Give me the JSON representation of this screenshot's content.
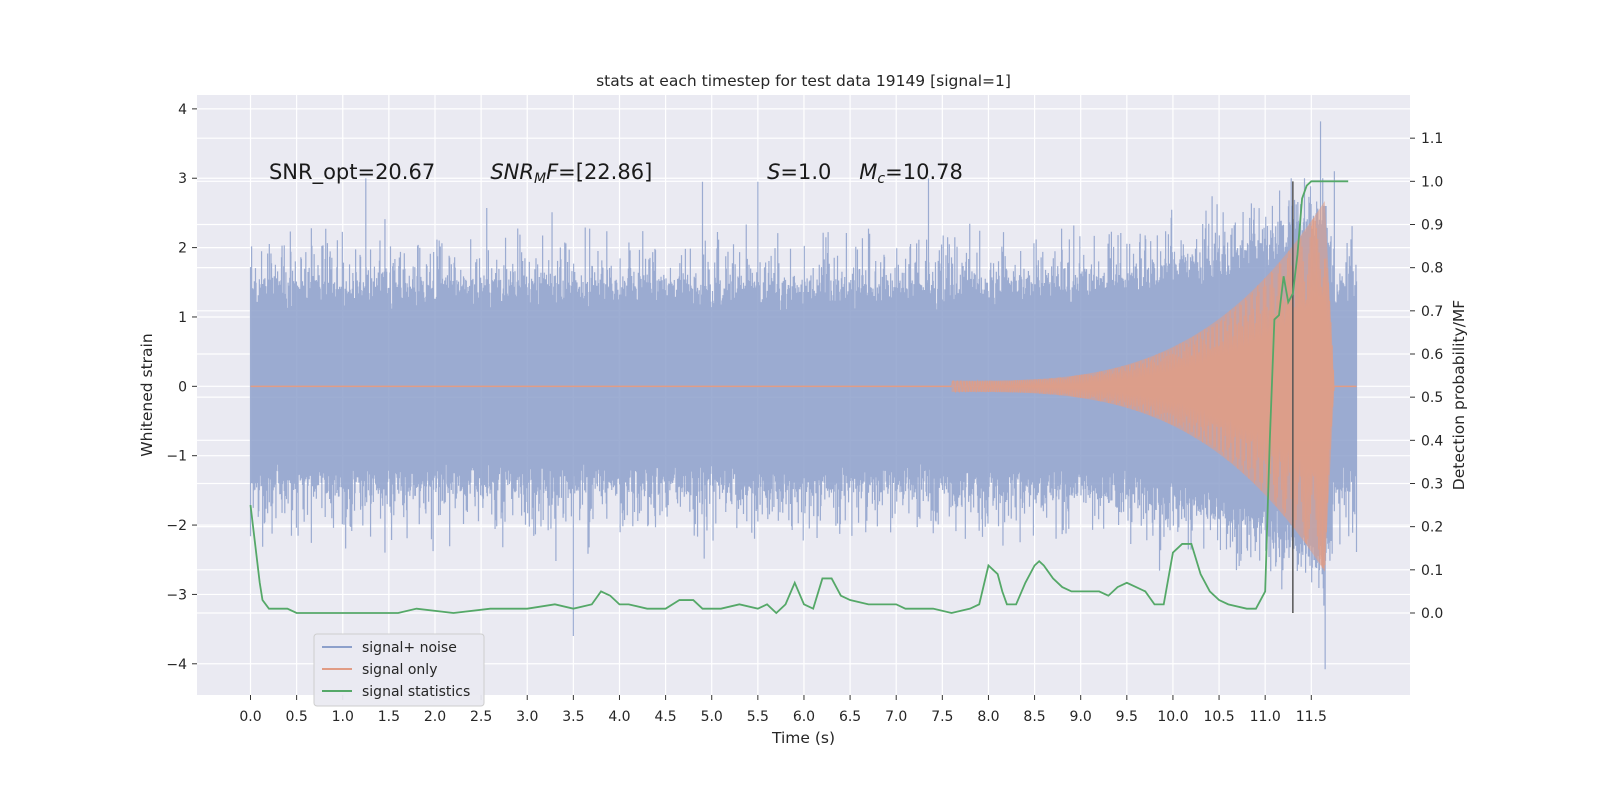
{
  "chart_data": {
    "type": "line",
    "title": "stats at each timestep for test data 19149 [signal=1]",
    "xlabel": "Time (s)",
    "ylabel": "Whitened strain",
    "y2label": "Detection probability/MF",
    "xlim": [
      -0.58,
      12.57
    ],
    "ylim": [
      -4.45,
      4.2
    ],
    "y2lim": [
      -0.19,
      1.2
    ],
    "xticks": [
      0.0,
      0.5,
      1.0,
      1.5,
      2.0,
      2.5,
      3.0,
      3.5,
      4.0,
      4.5,
      5.0,
      5.5,
      6.0,
      6.5,
      7.0,
      7.5,
      8.0,
      8.5,
      9.0,
      9.5,
      10.0,
      10.5,
      11.0,
      11.5
    ],
    "xtick_labels": [
      "0.0",
      "0.5",
      "1.0",
      "1.5",
      "2.0",
      "2.5",
      "3.0",
      "3.5",
      "4.0",
      "4.5",
      "5.0",
      "5.5",
      "6.0",
      "6.5",
      "7.0",
      "7.5",
      "8.0",
      "8.5",
      "9.0",
      "9.5",
      "10.0",
      "10.5",
      "11.0",
      "11.5"
    ],
    "yticks": [
      4,
      3,
      2,
      1,
      0,
      -1,
      -2,
      -3,
      -4
    ],
    "ytick_labels": [
      "4",
      "3",
      "2",
      "1",
      "0",
      "−1",
      "−2",
      "−3",
      "−4"
    ],
    "y2ticks": [
      1.1,
      1.0,
      0.9,
      0.8,
      0.7,
      0.6,
      0.5,
      0.4,
      0.3,
      0.2,
      0.1,
      0.0
    ],
    "y2tick_labels": [
      "1.1",
      "1.0",
      "0.9",
      "0.8",
      "0.7",
      "0.6",
      "0.5",
      "0.4",
      "0.3",
      "0.2",
      "0.1",
      "0.0"
    ],
    "grid": true,
    "legend_position": "lower-left",
    "annotations": {
      "snr_opt": "SNR_opt=20.67",
      "snr_mf_sym": "SNR",
      "snr_mf_sub": "M",
      "snr_mf_sym2": "F",
      "snr_mf_val": "=[22.86]",
      "s_sym": "S",
      "s_val": "=1.0",
      "mc_sym": "M",
      "mc_sub": "c",
      "mc_val": "=10.78"
    },
    "vline": {
      "x": 11.3,
      "y_from": 0.0,
      "y_to": 1.0,
      "axis": "right"
    },
    "series": [
      {
        "name": "signal+ noise",
        "kind": "noise",
        "color": "#8da0cb",
        "x_range": [
          0.0,
          11.99
        ],
        "band_lower": -1.55,
        "band_upper": 1.55,
        "max_value": 3.82,
        "min_value": -4.08
      },
      {
        "name": "signal only",
        "kind": "chirp",
        "color": "#e19c85",
        "x_range": [
          0.0,
          11.99
        ],
        "start_x": 7.6,
        "peak_x": 11.65,
        "peak_amplitude": 2.6
      },
      {
        "name": "signal statistics",
        "kind": "line",
        "axis": "right",
        "color": "#55a868",
        "x": [
          0.0,
          0.1,
          0.13,
          0.2,
          0.3,
          0.4,
          0.5,
          0.8,
          1.2,
          1.6,
          1.8,
          2.2,
          2.6,
          3.0,
          3.3,
          3.5,
          3.7,
          3.8,
          3.9,
          4.0,
          4.1,
          4.3,
          4.5,
          4.65,
          4.8,
          4.9,
          5.0,
          5.1,
          5.3,
          5.5,
          5.6,
          5.7,
          5.8,
          5.9,
          6.0,
          6.1,
          6.2,
          6.3,
          6.4,
          6.5,
          6.7,
          7.0,
          7.1,
          7.2,
          7.4,
          7.6,
          7.8,
          7.9,
          8.0,
          8.05,
          8.1,
          8.15,
          8.2,
          8.3,
          8.4,
          8.5,
          8.55,
          8.6,
          8.7,
          8.8,
          8.9,
          9.0,
          9.1,
          9.2,
          9.3,
          9.4,
          9.5,
          9.6,
          9.7,
          9.8,
          9.9,
          10.0,
          10.1,
          10.2,
          10.3,
          10.4,
          10.5,
          10.6,
          10.8,
          10.9,
          11.0,
          11.05,
          11.1,
          11.15,
          11.2,
          11.25,
          11.3,
          11.35,
          11.4,
          11.45,
          11.5,
          11.6,
          11.7,
          11.8,
          11.9
        ],
        "y": [
          0.25,
          0.07,
          0.03,
          0.01,
          0.01,
          0.01,
          0.0,
          0.0,
          0.0,
          0.0,
          0.01,
          0.0,
          0.01,
          0.01,
          0.02,
          0.01,
          0.02,
          0.05,
          0.04,
          0.02,
          0.02,
          0.01,
          0.01,
          0.03,
          0.03,
          0.01,
          0.01,
          0.01,
          0.02,
          0.01,
          0.02,
          0.0,
          0.02,
          0.07,
          0.02,
          0.01,
          0.08,
          0.08,
          0.04,
          0.03,
          0.02,
          0.02,
          0.01,
          0.01,
          0.01,
          0.0,
          0.01,
          0.02,
          0.11,
          0.1,
          0.09,
          0.05,
          0.02,
          0.02,
          0.07,
          0.11,
          0.12,
          0.11,
          0.08,
          0.06,
          0.05,
          0.05,
          0.05,
          0.05,
          0.04,
          0.06,
          0.07,
          0.06,
          0.05,
          0.02,
          0.02,
          0.14,
          0.16,
          0.16,
          0.09,
          0.05,
          0.03,
          0.02,
          0.01,
          0.01,
          0.05,
          0.4,
          0.68,
          0.69,
          0.78,
          0.72,
          0.74,
          0.83,
          0.96,
          0.99,
          1.0,
          1.0,
          1.0,
          1.0,
          1.0
        ]
      }
    ]
  }
}
